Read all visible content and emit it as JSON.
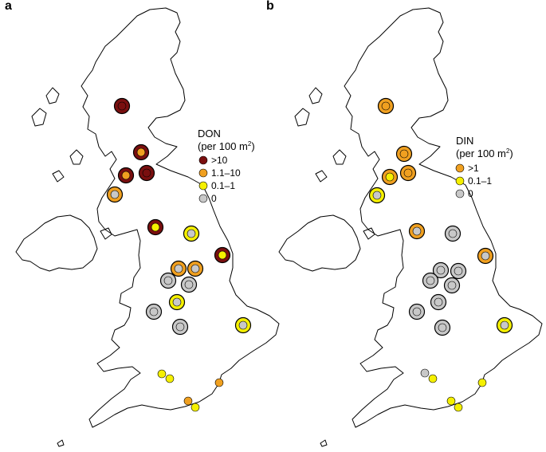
{
  "figure": {
    "panels": [
      {
        "letter": "a",
        "legend": {
          "title_line1": "DON",
          "title_line2_prefix": "(per 100 m",
          "title_line2_sup": "2",
          "title_line2_suffix": ")",
          "items": [
            {
              "label": ">10",
              "category": "high"
            },
            {
              "label": "1.1–10",
              "category": "mid"
            },
            {
              "label": "0.1–1",
              "category": "low"
            },
            {
              "label": "0",
              "category": "zero"
            }
          ]
        },
        "sites": [
          {
            "id": "a1",
            "outer": "high",
            "inner": "high"
          },
          {
            "id": "a2",
            "outer": "high",
            "inner": "mid"
          },
          {
            "id": "a3",
            "outer": "high",
            "inner": "mid"
          },
          {
            "id": "a4",
            "outer": "high",
            "inner": "high"
          },
          {
            "id": "a5",
            "outer": "mid",
            "inner": "zero"
          },
          {
            "id": "a6",
            "outer": "high",
            "inner": "low"
          },
          {
            "id": "a7",
            "outer": "low",
            "inner": "zero"
          },
          {
            "id": "a8",
            "outer": "high",
            "inner": "low"
          },
          {
            "id": "a9",
            "outer": "mid",
            "inner": "zero"
          },
          {
            "id": "a10",
            "outer": "mid",
            "inner": "zero"
          },
          {
            "id": "a11",
            "outer": "zero",
            "inner": "zero"
          },
          {
            "id": "a12",
            "outer": "zero",
            "inner": "zero"
          },
          {
            "id": "a13",
            "outer": "low",
            "inner": "zero"
          },
          {
            "id": "a14",
            "outer": "zero",
            "inner": "zero"
          },
          {
            "id": "a15",
            "outer": "zero",
            "inner": "zero"
          },
          {
            "id": "a16",
            "outer": "low",
            "inner": "zero"
          },
          {
            "id": "a17",
            "outer": null,
            "inner": "low"
          },
          {
            "id": "a18",
            "outer": null,
            "inner": "low"
          },
          {
            "id": "a19",
            "outer": null,
            "inner": "mid"
          },
          {
            "id": "a20",
            "outer": null,
            "inner": "mid"
          },
          {
            "id": "a21",
            "outer": null,
            "inner": "low"
          }
        ]
      },
      {
        "letter": "b",
        "legend": {
          "title_line1": "DIN",
          "title_line2_prefix": "(per 100 m",
          "title_line2_sup": "2",
          "title_line2_suffix": ")",
          "items": [
            {
              "label": ">1",
              "category": "mid"
            },
            {
              "label": "0.1–1",
              "category": "low"
            },
            {
              "label": "0",
              "category": "zero"
            }
          ]
        },
        "sites": [
          {
            "id": "b1",
            "outer": "mid",
            "inner": "mid"
          },
          {
            "id": "b2",
            "outer": "mid",
            "inner": "mid"
          },
          {
            "id": "b3",
            "outer": "mid",
            "inner": "mid"
          },
          {
            "id": "b4",
            "outer": "mid",
            "inner": "low"
          },
          {
            "id": "b5",
            "outer": "low",
            "inner": "zero"
          },
          {
            "id": "b6",
            "outer": "mid",
            "inner": "zero"
          },
          {
            "id": "b7",
            "outer": "zero",
            "inner": "zero"
          },
          {
            "id": "b8",
            "outer": "mid",
            "inner": "zero"
          },
          {
            "id": "b9",
            "outer": "zero",
            "inner": "zero"
          },
          {
            "id": "b10",
            "outer": "zero",
            "inner": "zero"
          },
          {
            "id": "b11",
            "outer": "zero",
            "inner": "zero"
          },
          {
            "id": "b12",
            "outer": "zero",
            "inner": "zero"
          },
          {
            "id": "b13",
            "outer": "zero",
            "inner": "zero"
          },
          {
            "id": "b14",
            "outer": "zero",
            "inner": "zero"
          },
          {
            "id": "b15",
            "outer": "zero",
            "inner": "zero"
          },
          {
            "id": "b16",
            "outer": "low",
            "inner": "zero"
          },
          {
            "id": "b17",
            "outer": null,
            "inner": "zero"
          },
          {
            "id": "b18",
            "outer": null,
            "inner": "low"
          },
          {
            "id": "b19",
            "outer": null,
            "inner": "low"
          },
          {
            "id": "b20",
            "outer": null,
            "inner": "low"
          },
          {
            "id": "b21",
            "outer": null,
            "inner": "low"
          }
        ]
      }
    ],
    "colors": {
      "high": "#7a0f0f",
      "mid": "#f0a020",
      "low": "#f5f000",
      "zero": "#c8c8c8",
      "coast": "#000000"
    }
  }
}
